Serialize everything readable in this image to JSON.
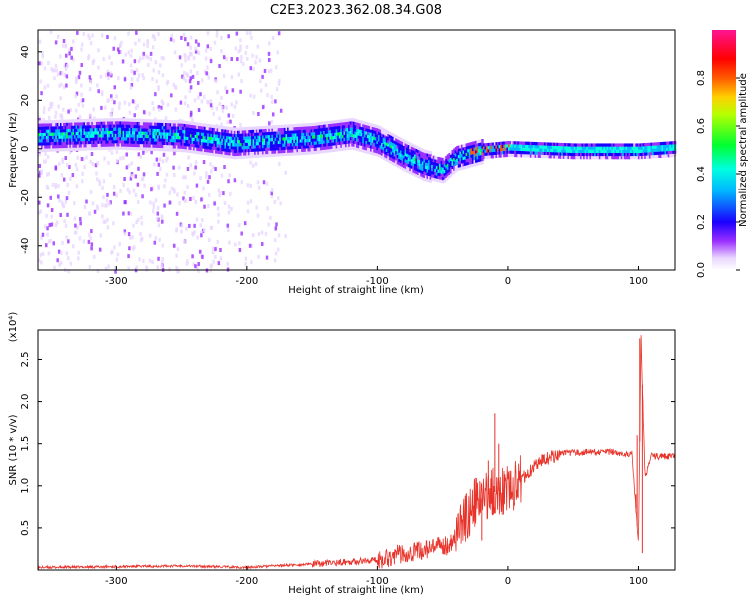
{
  "figure_title": "C2E3.2023.362.08.34.G08",
  "colors": {
    "snr_line": "#e8332a",
    "axes": "#000000"
  },
  "chart_data": [
    {
      "type": "heatmap",
      "title": "C2E3.2023.362.08.34.G08",
      "xlabel": "Height of straight line (km)",
      "ylabel": "Frequency (Hz)",
      "xlim": [
        -360,
        128
      ],
      "ylim": [
        -50,
        49
      ],
      "x_ticks": [
        -300,
        -200,
        -100,
        0,
        100
      ],
      "y_ticks": [
        -40,
        -20,
        0,
        20,
        40
      ],
      "colorbar": {
        "label": "Normalized spectral amplitude",
        "range": [
          0,
          1
        ],
        "ticks": [
          0.0,
          0.2,
          0.4,
          0.6,
          0.8
        ],
        "colormap": "rainbow: white→purple→blue→cyan→green→yellow→orange→red→magenta"
      },
      "band_center": [
        {
          "x": -360,
          "y": 6
        },
        {
          "x": -300,
          "y": 7
        },
        {
          "x": -250,
          "y": 6
        },
        {
          "x": -210,
          "y": 3
        },
        {
          "x": -180,
          "y": 4
        },
        {
          "x": -150,
          "y": 5
        },
        {
          "x": -120,
          "y": 7
        },
        {
          "x": -100,
          "y": 4
        },
        {
          "x": -80,
          "y": -2
        },
        {
          "x": -65,
          "y": -6
        },
        {
          "x": -50,
          "y": -8
        },
        {
          "x": -40,
          "y": -3
        },
        {
          "x": -20,
          "y": 0
        },
        {
          "x": 0,
          "y": 1
        },
        {
          "x": 50,
          "y": 0
        },
        {
          "x": 100,
          "y": 0
        },
        {
          "x": 128,
          "y": 1
        }
      ]
    },
    {
      "type": "line",
      "xlabel": "Height of straight line (km)",
      "ylabel": "SNR (10 * v/v)",
      "y_multiplier_label": "(x10⁴)",
      "xlim": [
        -360,
        128
      ],
      "ylim": [
        0,
        2.85
      ],
      "x_ticks": [
        -300,
        -200,
        -100,
        0,
        100
      ],
      "y_ticks": [
        0.5,
        1.0,
        1.5,
        2.0,
        2.5
      ],
      "series": [
        {
          "points": [
            {
              "x": -360,
              "y": 0.03
            },
            {
              "x": -300,
              "y": 0.04
            },
            {
              "x": -250,
              "y": 0.05
            },
            {
              "x": -200,
              "y": 0.03
            },
            {
              "x": -180,
              "y": 0.05
            },
            {
              "x": -150,
              "y": 0.07
            },
            {
              "x": -120,
              "y": 0.1
            },
            {
              "x": -100,
              "y": 0.12
            },
            {
              "x": -80,
              "y": 0.2
            },
            {
              "x": -60,
              "y": 0.25
            },
            {
              "x": -45,
              "y": 0.3
            },
            {
              "x": -35,
              "y": 0.55
            },
            {
              "x": -25,
              "y": 0.8
            },
            {
              "x": -15,
              "y": 0.9
            },
            {
              "x": -5,
              "y": 0.95
            },
            {
              "x": 5,
              "y": 1.0
            },
            {
              "x": 15,
              "y": 1.15
            },
            {
              "x": 25,
              "y": 1.3
            },
            {
              "x": 40,
              "y": 1.38
            },
            {
              "x": 60,
              "y": 1.4
            },
            {
              "x": 80,
              "y": 1.4
            },
            {
              "x": 95,
              "y": 1.38
            },
            {
              "x": 100,
              "y": 0.3
            },
            {
              "x": 102,
              "y": 2.75
            },
            {
              "x": 105,
              "y": 1.1
            },
            {
              "x": 110,
              "y": 1.35
            },
            {
              "x": 128,
              "y": 1.35
            }
          ],
          "spikes": [
            {
              "x": -10,
              "y": 1.86
            },
            {
              "x": -15,
              "y": 1.3
            },
            {
              "x": -20,
              "y": 0.35
            },
            {
              "x": -7,
              "y": 1.5
            },
            {
              "x": 101,
              "y": 2.75
            },
            {
              "x": 99,
              "y": 1.6
            },
            {
              "x": 103,
              "y": 0.2
            },
            {
              "x": 98,
              "y": 0.9
            }
          ]
        }
      ]
    }
  ]
}
